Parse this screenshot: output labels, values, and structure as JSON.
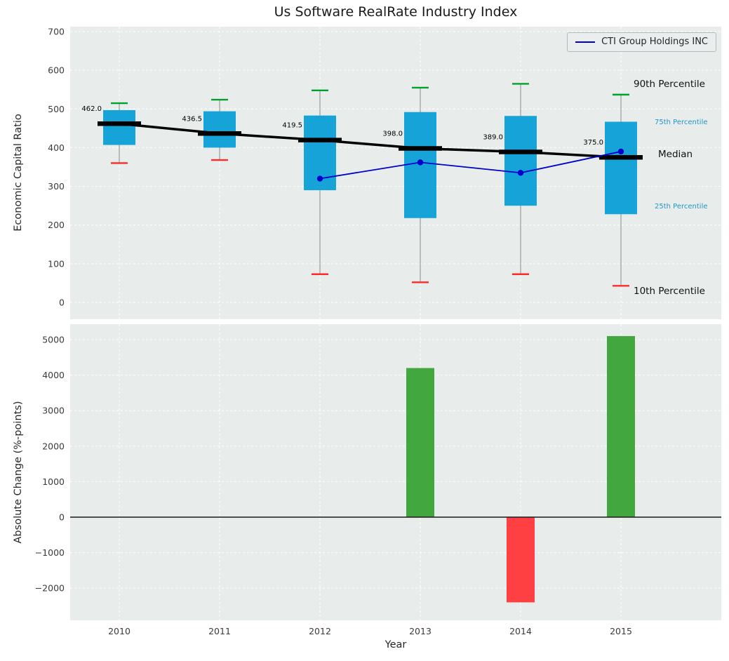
{
  "title": "Us Software RealRate Industry Index",
  "axes": {
    "top_ylabel": "Economic Capital Ratio",
    "bottom_ylabel": "Absolute Change (%-points)",
    "xlabel": "Year"
  },
  "legend": {
    "series_label": "CTI Group Holdings INC"
  },
  "percentile_labels": {
    "p90": "90th Percentile",
    "p75": "75th Percentile",
    "median": "Median",
    "p25": "25th Percentile",
    "p10": "10th Percentile"
  },
  "colors": {
    "plot_bg": "#e8edec",
    "grid": "#ffffff",
    "box_fill": "#16a4d8",
    "median_line": "#000000",
    "cap_high": "#00a02c",
    "cap_low": "#ff2a2a",
    "whisker": "#8a8a8a",
    "company_line": "#0000cd",
    "bar_positive": "#41a73e",
    "bar_negative": "#ff4043",
    "zero_line": "#1a1a1a",
    "tick_text": "#3a3a3a",
    "annotation_text": "#000000",
    "percentile_accent": "#1f97c4"
  },
  "chart_data": [
    {
      "type": "boxplot",
      "title": "Us Software RealRate Industry Index",
      "ylabel": "Economic Capital Ratio",
      "ylim": [
        0,
        700
      ],
      "yticks": [
        0,
        100,
        200,
        300,
        400,
        500,
        600,
        700
      ],
      "grid": true,
      "legend_position": "upper right",
      "categories": [
        "2010",
        "2011",
        "2012",
        "2013",
        "2014",
        "2015"
      ],
      "boxes": [
        {
          "year": "2010",
          "p10": 360,
          "q1": 407,
          "median": 462.0,
          "q3": 497,
          "p90": 515
        },
        {
          "year": "2011",
          "p10": 368,
          "q1": 400,
          "median": 436.5,
          "q3": 494,
          "p90": 524
        },
        {
          "year": "2012",
          "p10": 73,
          "q1": 290,
          "median": 419.5,
          "q3": 483,
          "p90": 548
        },
        {
          "year": "2013",
          "p10": 52,
          "q1": 218,
          "median": 398.0,
          "q3": 492,
          "p90": 555
        },
        {
          "year": "2014",
          "p10": 73,
          "q1": 250,
          "median": 389.0,
          "q3": 482,
          "p90": 565
        },
        {
          "year": "2015",
          "p10": 43,
          "q1": 228,
          "median": 375.0,
          "q3": 467,
          "p90": 537
        }
      ],
      "median_labels": [
        "462.0",
        "436.5",
        "419.5",
        "398.0",
        "389.0",
        "375.0"
      ],
      "series": [
        {
          "name": "CTI Group Holdings INC",
          "x": [
            "2012",
            "2013",
            "2014",
            "2015"
          ],
          "y": [
            320,
            362,
            335,
            390
          ]
        }
      ]
    },
    {
      "type": "bar",
      "ylabel": "Absolute Change (%-points)",
      "xlabel": "Year",
      "ylim": [
        -2900,
        5430
      ],
      "yticks": [
        -2000,
        -1000,
        0,
        1000,
        2000,
        3000,
        4000,
        5000
      ],
      "ytick_labels": [
        "−2000",
        "−1000",
        "0",
        "1000",
        "2000",
        "3000",
        "4000",
        "5000"
      ],
      "grid": true,
      "categories": [
        "2010",
        "2011",
        "2012",
        "2013",
        "2014",
        "2015"
      ],
      "values": [
        null,
        null,
        null,
        4200,
        -2400,
        5100
      ]
    }
  ]
}
